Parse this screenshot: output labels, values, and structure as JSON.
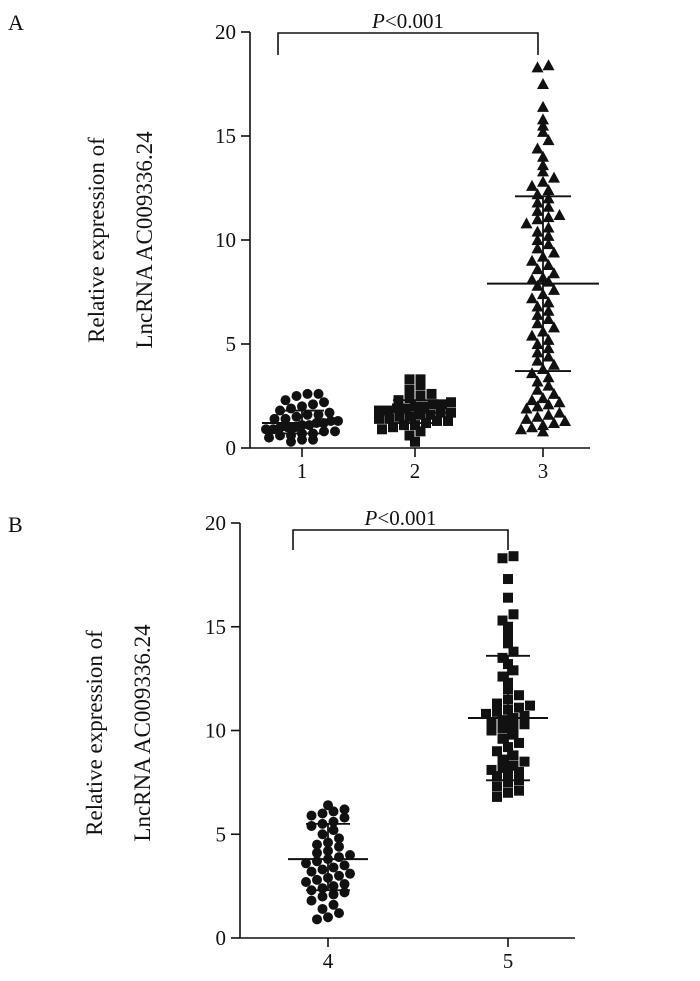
{
  "chart_data": [
    {
      "panel_label": "A",
      "type": "scatter",
      "title": "",
      "xlabel": "",
      "ylabel_lines": [
        "Relative expression of",
        "LncRNA AC009336.24"
      ],
      "ylim": [
        0,
        20
      ],
      "yticks": [
        "0",
        "5",
        "10",
        "15",
        "20"
      ],
      "categories": [
        "1",
        "2",
        "3"
      ],
      "significance": {
        "text_italic": "P",
        "text_rest": "<0.001",
        "from": "1",
        "to": "3"
      },
      "series": [
        {
          "name": "1",
          "marker": "circle",
          "mean": 1.2,
          "sd_low": 0.7,
          "sd_high": 1.8,
          "values": [
            0.3,
            0.4,
            0.4,
            0.5,
            0.6,
            0.6,
            0.7,
            0.7,
            0.8,
            0.8,
            0.9,
            0.9,
            1.0,
            1.0,
            1.0,
            1.1,
            1.1,
            1.2,
            1.2,
            1.3,
            1.3,
            1.4,
            1.4,
            1.5,
            1.6,
            1.6,
            1.7,
            1.8,
            1.9,
            2.0,
            2.1,
            2.2,
            2.3,
            2.5,
            2.6,
            2.6
          ]
        },
        {
          "name": "2",
          "marker": "square",
          "mean": 1.7,
          "sd_low": 1.2,
          "sd_high": 2.3,
          "values": [
            0.3,
            0.6,
            0.8,
            0.9,
            1.0,
            1.1,
            1.1,
            1.2,
            1.3,
            1.3,
            1.4,
            1.4,
            1.5,
            1.5,
            1.6,
            1.6,
            1.7,
            1.7,
            1.8,
            1.8,
            1.9,
            1.9,
            2.0,
            2.0,
            2.1,
            2.1,
            2.2,
            2.3,
            2.4,
            2.5,
            2.6,
            2.8,
            3.0,
            3.3,
            3.3
          ]
        },
        {
          "name": "3",
          "marker": "triangle",
          "mean": 7.9,
          "sd_low": 3.7,
          "sd_high": 12.1,
          "values": [
            0.8,
            0.9,
            1.0,
            1.1,
            1.2,
            1.3,
            1.4,
            1.5,
            1.6,
            1.7,
            1.9,
            2.0,
            2.1,
            2.2,
            2.3,
            2.4,
            2.6,
            2.8,
            3.0,
            3.2,
            3.4,
            3.6,
            3.8,
            4.0,
            4.2,
            4.4,
            4.6,
            4.8,
            5.0,
            5.2,
            5.4,
            5.6,
            5.8,
            6.0,
            6.2,
            6.4,
            6.6,
            6.8,
            7.0,
            7.2,
            7.4,
            7.6,
            7.8,
            8.0,
            8.1,
            8.2,
            8.4,
            8.6,
            8.8,
            9.0,
            9.2,
            9.4,
            9.6,
            9.8,
            10.0,
            10.2,
            10.4,
            10.6,
            10.8,
            11.0,
            11.1,
            11.2,
            11.4,
            11.6,
            11.8,
            12.0,
            12.2,
            12.4,
            12.6,
            12.8,
            13.0,
            13.3,
            13.6,
            14.0,
            14.4,
            14.8,
            15.2,
            15.5,
            15.8,
            16.4,
            17.5,
            18.3,
            18.4
          ]
        }
      ]
    },
    {
      "panel_label": "B",
      "type": "scatter",
      "title": "",
      "xlabel": "",
      "ylabel_lines": [
        "Relative expression of",
        "LncRNA AC009336.24"
      ],
      "ylim": [
        0,
        20
      ],
      "yticks": [
        "0",
        "5",
        "10",
        "15",
        "20"
      ],
      "categories": [
        "4",
        "5"
      ],
      "significance": {
        "text_italic": "P",
        "text_rest": "<0.001",
        "from": "4",
        "to": "5"
      },
      "series": [
        {
          "name": "4",
          "marker": "circle",
          "mean": 3.8,
          "sd_low": 2.3,
          "sd_high": 5.5,
          "values": [
            0.9,
            1.0,
            1.2,
            1.4,
            1.6,
            1.8,
            2.0,
            2.1,
            2.2,
            2.3,
            2.4,
            2.5,
            2.6,
            2.7,
            2.8,
            2.9,
            3.0,
            3.1,
            3.2,
            3.3,
            3.4,
            3.5,
            3.6,
            3.7,
            3.8,
            3.9,
            4.0,
            4.1,
            4.2,
            4.4,
            4.5,
            4.6,
            4.8,
            5.0,
            5.2,
            5.4,
            5.5,
            5.6,
            5.8,
            5.9,
            6.0,
            6.1,
            6.2,
            6.4
          ]
        },
        {
          "name": "5",
          "marker": "square",
          "mean": 10.6,
          "sd_low": 7.6,
          "sd_high": 13.6,
          "values": [
            6.8,
            7.0,
            7.1,
            7.3,
            7.5,
            7.6,
            7.8,
            7.9,
            8.0,
            8.1,
            8.2,
            8.3,
            8.5,
            8.6,
            8.8,
            9.0,
            9.2,
            9.4,
            9.6,
            9.8,
            10.0,
            10.1,
            10.2,
            10.3,
            10.4,
            10.5,
            10.6,
            10.7,
            10.8,
            10.9,
            11.0,
            11.1,
            11.2,
            11.3,
            11.5,
            11.7,
            12.0,
            12.3,
            12.6,
            12.9,
            13.2,
            13.5,
            13.8,
            14.2,
            14.6,
            15.0,
            15.3,
            15.6,
            16.4,
            17.3,
            18.3,
            18.4
          ]
        }
      ]
    }
  ]
}
